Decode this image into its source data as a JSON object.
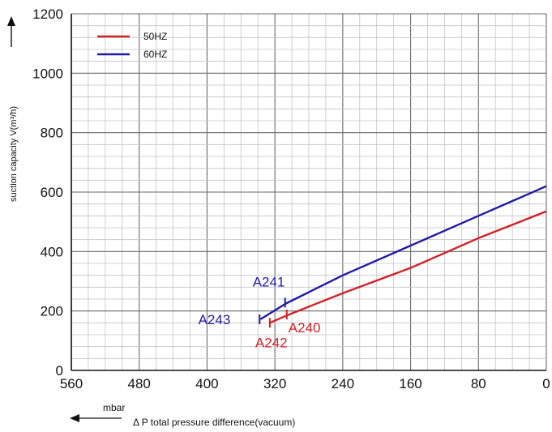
{
  "chart_data": {
    "type": "line",
    "xlabel": "Δ P total pressure difference(vacuum)",
    "x_unit": "mbar",
    "ylabel": "suction capacity V(m³/h)",
    "xlim": [
      560,
      0
    ],
    "ylim": [
      0,
      1200
    ],
    "x_ticks": [
      560,
      480,
      400,
      320,
      240,
      160,
      80,
      0
    ],
    "y_ticks": [
      0,
      200,
      400,
      600,
      800,
      1000,
      1200
    ],
    "x_ticks_label": [
      "560",
      "480",
      "400",
      "320",
      "240",
      "160",
      "80",
      "0"
    ],
    "y_ticks_label": [
      "0",
      "200",
      "400",
      "600",
      "800",
      "1000",
      "1200"
    ],
    "grid": true,
    "legend_position": "top-left",
    "series": [
      {
        "name": "50HZ",
        "color": "#d42027",
        "x": [
          326,
          306,
          240,
          160,
          80,
          0
        ],
        "y": [
          160,
          185,
          260,
          345,
          445,
          535
        ]
      },
      {
        "name": "60HZ",
        "color": "#1f1aa8",
        "x": [
          337,
          307,
          240,
          160,
          80,
          0
        ],
        "y": [
          172,
          225,
          320,
          420,
          520,
          620
        ]
      }
    ],
    "annotations": [
      {
        "text": "A241",
        "color": "#1f1aa8",
        "x": 308,
        "y": 228
      },
      {
        "text": "A243",
        "color": "#1f1aa8",
        "x": 338,
        "y": 172
      },
      {
        "text": "A240",
        "color": "#d42027",
        "x": 306,
        "y": 188
      },
      {
        "text": "A242",
        "color": "#d42027",
        "x": 326,
        "y": 160
      }
    ]
  }
}
